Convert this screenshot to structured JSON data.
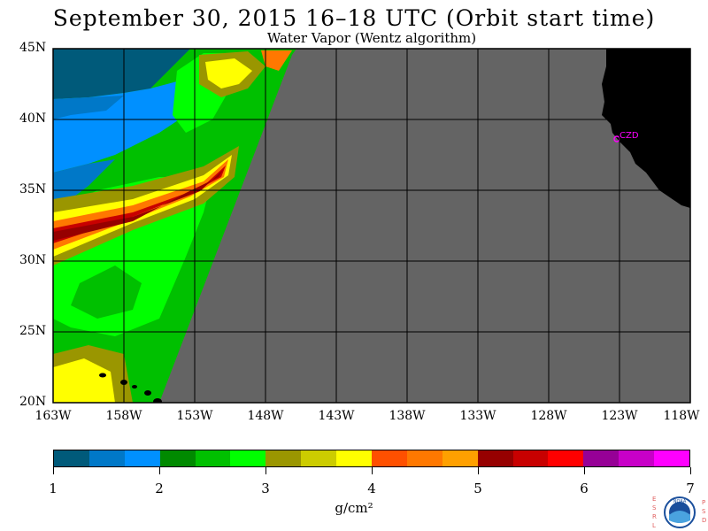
{
  "title": "September 30, 2015   16–18 UTC   (Orbit start time)",
  "subtitle": "Water Vapor (Wentz algorithm)",
  "map": {
    "lat_ticks": [
      "45N",
      "40N",
      "35N",
      "30N",
      "25N",
      "20N"
    ],
    "lon_ticks": [
      "163W",
      "158W",
      "153W",
      "148W",
      "143W",
      "138W",
      "133W",
      "128W",
      "123W",
      "118W"
    ],
    "station_label": "CZD",
    "colors": {
      "no_data": "#646464",
      "land": "#000000",
      "gridline": "#000000",
      "station": "#ff00ff"
    }
  },
  "colorbar": {
    "colors": [
      "#005a7a",
      "#0078c8",
      "#0090ff",
      "#008a00",
      "#00c000",
      "#00ff00",
      "#9a9600",
      "#cccc00",
      "#ffff00",
      "#ff5000",
      "#ff7800",
      "#ffa000",
      "#960000",
      "#c80000",
      "#ff0000",
      "#960096",
      "#c800c8",
      "#ff00ff"
    ],
    "tick_labels": [
      "1",
      "2",
      "3",
      "4",
      "5",
      "6",
      "7"
    ],
    "unit": "g/cm²"
  },
  "logo": {
    "left_letters": [
      "E",
      "S",
      "R",
      "L"
    ],
    "right_letters": [
      "P",
      "S",
      "D"
    ],
    "text": "NOAA"
  }
}
